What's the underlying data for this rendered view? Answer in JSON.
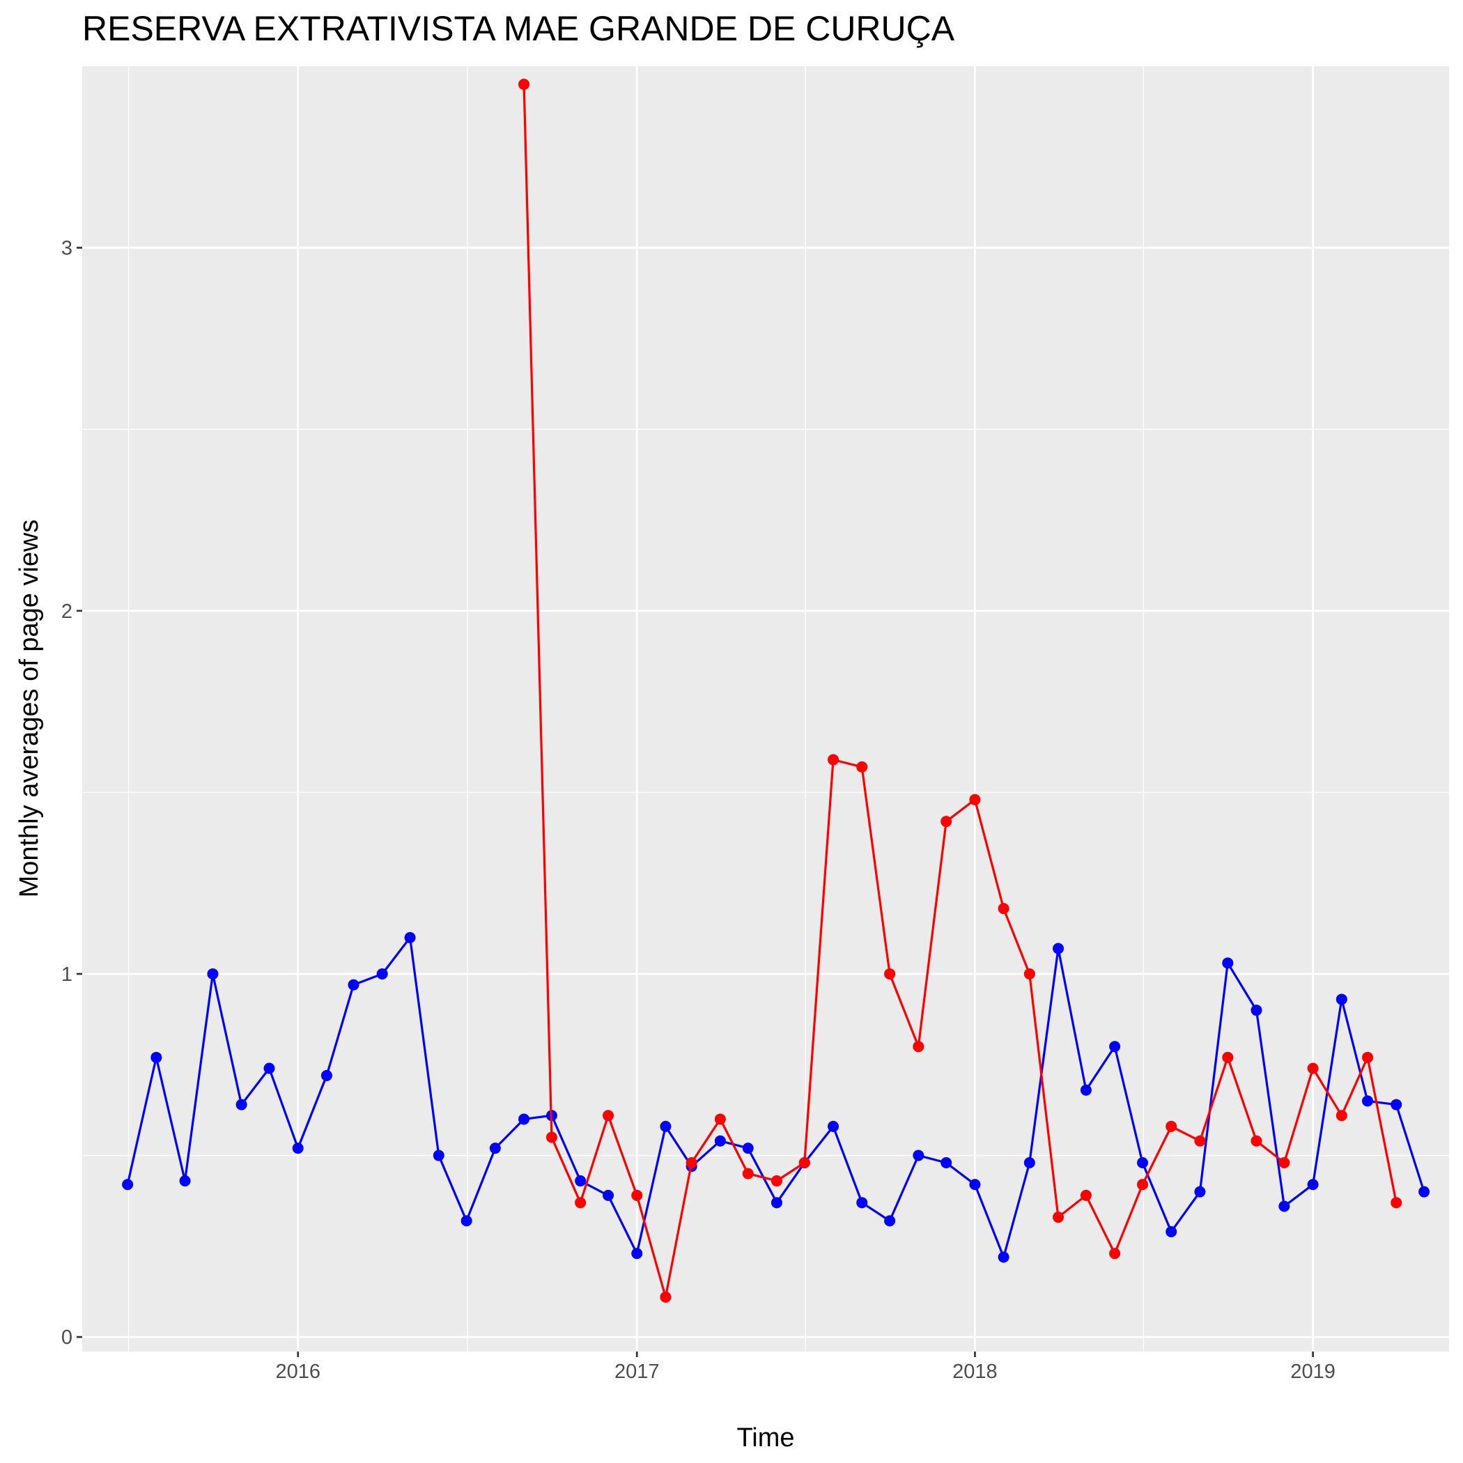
{
  "chart_data": {
    "type": "line",
    "title": "RESERVA EXTRATIVISTA MAE GRANDE DE CURUÇA",
    "xlabel": "Time",
    "ylabel": "Monthly averages of page views",
    "x_ticks": [
      "2016",
      "2017",
      "2018",
      "2019"
    ],
    "y_ticks": [
      "0",
      "1",
      "2",
      "3"
    ],
    "ylim": [
      -0.04,
      3.5
    ],
    "xlim": [
      "2015-05-13",
      "2019-05-28"
    ],
    "grid": true,
    "legend": "none",
    "series": [
      {
        "color": "#0000ff",
        "points": [
          [
            "2015-07-01",
            0.42
          ],
          [
            "2015-08-01",
            0.77
          ],
          [
            "2015-09-01",
            0.43
          ],
          [
            "2015-10-01",
            1.0
          ],
          [
            "2015-11-01",
            0.64
          ],
          [
            "2015-12-01",
            0.74
          ],
          [
            "2016-01-01",
            0.52
          ],
          [
            "2016-02-01",
            0.72
          ],
          [
            "2016-03-01",
            0.97
          ],
          [
            "2016-04-01",
            1.0
          ],
          [
            "2016-05-01",
            1.1
          ],
          [
            "2016-06-01",
            0.5
          ],
          [
            "2016-07-01",
            0.32
          ],
          [
            "2016-08-01",
            0.52
          ],
          [
            "2016-09-01",
            0.6
          ],
          [
            "2016-10-01",
            0.61
          ],
          [
            "2016-11-01",
            0.43
          ],
          [
            "2016-12-01",
            0.39
          ],
          [
            "2017-01-01",
            0.23
          ],
          [
            "2017-02-01",
            0.58
          ],
          [
            "2017-03-01",
            0.47
          ],
          [
            "2017-04-01",
            0.54
          ],
          [
            "2017-05-01",
            0.52
          ],
          [
            "2017-06-01",
            0.37
          ],
          [
            "2017-07-01",
            0.48
          ],
          [
            "2017-08-01",
            0.58
          ],
          [
            "2017-09-01",
            0.37
          ],
          [
            "2017-10-01",
            0.32
          ],
          [
            "2017-11-01",
            0.5
          ],
          [
            "2017-12-01",
            0.48
          ],
          [
            "2018-01-01",
            0.42
          ],
          [
            "2018-02-01",
            0.22
          ],
          [
            "2018-03-01",
            0.48
          ],
          [
            "2018-04-01",
            1.07
          ],
          [
            "2018-05-01",
            0.68
          ],
          [
            "2018-06-01",
            0.8
          ],
          [
            "2018-07-01",
            0.48
          ],
          [
            "2018-08-01",
            0.29
          ],
          [
            "2018-09-01",
            0.4
          ],
          [
            "2018-10-01",
            1.03
          ],
          [
            "2018-11-01",
            0.9
          ],
          [
            "2018-12-01",
            0.36
          ],
          [
            "2019-01-01",
            0.42
          ],
          [
            "2019-02-01",
            0.93
          ],
          [
            "2019-03-01",
            0.65
          ],
          [
            "2019-04-01",
            0.64
          ],
          [
            "2019-05-01",
            0.4
          ]
        ]
      },
      {
        "color": "#ff0000",
        "points": [
          [
            "2016-09-01",
            3.45
          ],
          [
            "2016-10-01",
            0.55
          ],
          [
            "2016-11-01",
            0.37
          ],
          [
            "2016-12-01",
            0.61
          ],
          [
            "2017-01-01",
            0.39
          ],
          [
            "2017-02-01",
            0.11
          ],
          [
            "2017-03-01",
            0.48
          ],
          [
            "2017-04-01",
            0.6
          ],
          [
            "2017-05-01",
            0.45
          ],
          [
            "2017-06-01",
            0.43
          ],
          [
            "2017-07-01",
            0.48
          ],
          [
            "2017-08-01",
            1.59
          ],
          [
            "2017-09-01",
            1.57
          ],
          [
            "2017-10-01",
            1.0
          ],
          [
            "2017-11-01",
            0.8
          ],
          [
            "2017-12-01",
            1.42
          ],
          [
            "2018-01-01",
            1.48
          ],
          [
            "2018-02-01",
            1.18
          ],
          [
            "2018-03-01",
            1.0
          ],
          [
            "2018-04-01",
            0.33
          ],
          [
            "2018-05-01",
            0.39
          ],
          [
            "2018-06-01",
            0.23
          ],
          [
            "2018-07-01",
            0.42
          ],
          [
            "2018-08-01",
            0.58
          ],
          [
            "2018-09-01",
            0.54
          ],
          [
            "2018-10-01",
            0.77
          ],
          [
            "2018-11-01",
            0.54
          ],
          [
            "2018-12-01",
            0.48
          ],
          [
            "2019-01-01",
            0.74
          ],
          [
            "2019-02-01",
            0.61
          ],
          [
            "2019-03-01",
            0.77
          ],
          [
            "2019-04-01",
            0.37
          ]
        ]
      }
    ]
  }
}
